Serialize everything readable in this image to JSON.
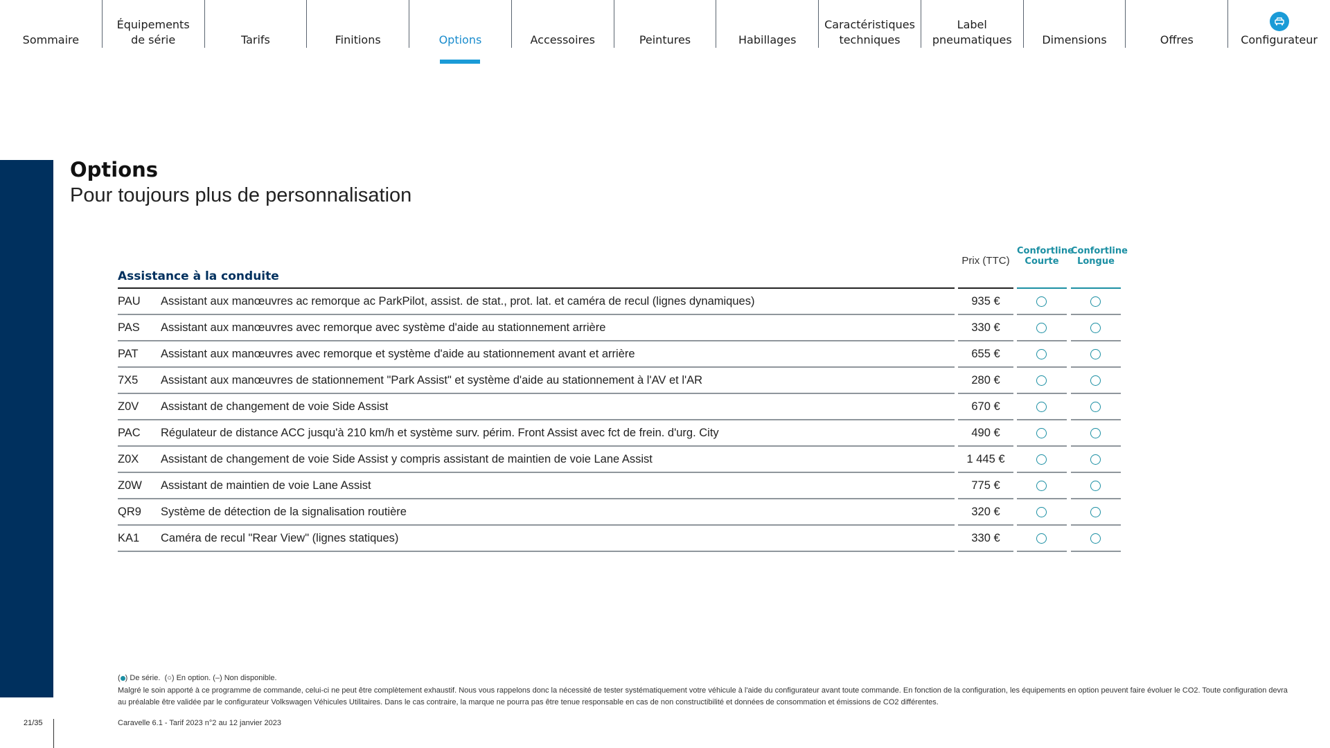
{
  "nav": {
    "items": [
      {
        "label": "Sommaire"
      },
      {
        "label": "Équipements\nde série"
      },
      {
        "label": "Tarifs"
      },
      {
        "label": "Finitions"
      },
      {
        "label": "Options",
        "active": true
      },
      {
        "label": "Accessoires"
      },
      {
        "label": "Peintures"
      },
      {
        "label": "Habillages"
      },
      {
        "label": "Caractéristiques\ntechniques"
      },
      {
        "label": "Label\npneumatiques"
      },
      {
        "label": "Dimensions"
      },
      {
        "label": "Offres"
      },
      {
        "label": "Configurateur",
        "icon": "car-configurator-icon"
      }
    ]
  },
  "page": {
    "title": "Options",
    "subtitle": "Pour toujours plus de personnalisation"
  },
  "table": {
    "section": "Assistance à la conduite",
    "price_header": "Prix (TTC)",
    "columns": [
      "Confortline\nCourte",
      "Confortline\nLongue"
    ],
    "rows": [
      {
        "code": "PAU",
        "desc": "Assistant aux manœuvres ac remorque ac ParkPilot, assist. de stat., prot. lat. et caméra de recul (lignes dynamiques)",
        "price": "935 €",
        "courte": "option",
        "longue": "option"
      },
      {
        "code": "PAS",
        "desc": "Assistant aux manœuvres avec remorque avec système d'aide au stationnement arrière",
        "price": "330 €",
        "courte": "option",
        "longue": "option"
      },
      {
        "code": "PAT",
        "desc": "Assistant aux manœuvres avec remorque et système d'aide au stationnement avant et arrière",
        "price": "655 €",
        "courte": "option",
        "longue": "option"
      },
      {
        "code": "7X5",
        "desc": "Assistant aux manœuvres de stationnement \"Park Assist\" et système d'aide au stationnement à l'AV et l'AR",
        "price": "280 €",
        "courte": "option",
        "longue": "option"
      },
      {
        "code": "Z0V",
        "desc": "Assistant de changement de voie Side Assist",
        "price": "670 €",
        "courte": "option",
        "longue": "option"
      },
      {
        "code": "PAC",
        "desc": "Régulateur de distance ACC jusqu'à 210 km/h et système surv. périm. Front Assist avec fct de frein. d'urg. City",
        "price": "490 €",
        "courte": "option",
        "longue": "option"
      },
      {
        "code": "Z0X",
        "desc": "Assistant de changement de voie Side Assist y compris assistant de maintien de voie Lane Assist",
        "price": "1 445 €",
        "courte": "option",
        "longue": "option"
      },
      {
        "code": "Z0W",
        "desc": "Assistant de maintien de voie Lane Assist",
        "price": "775 €",
        "courte": "option",
        "longue": "option"
      },
      {
        "code": "QR9",
        "desc": "Système de détection de la signalisation routière",
        "price": "320 €",
        "courte": "option",
        "longue": "option"
      },
      {
        "code": "KA1",
        "desc": "Caméra de recul \"Rear View\" (lignes statiques)",
        "price": "330 €",
        "courte": "option",
        "longue": "option"
      }
    ]
  },
  "legend": {
    "serie": "De série.",
    "option": "(○) En option.",
    "na": "(–) Non disponible."
  },
  "disclaimer": "Malgré le soin apporté à ce programme de commande, celui-ci ne peut être complètement exhaustif. Nous vous rappelons donc la nécessité de tester systématiquement votre véhicule à l'aide du configurateur avant toute commande.  En fonction de la configuration, les équipements en option peuvent faire évoluer le CO2. Toute configuration devra au préalable être validée par le configurateur Volkswagen Véhicules Utilitaires. Dans le cas contraire, la marque ne pourra pas être tenue responsable en cas de non constructibilité et données de consommation et émissions de CO2 différentes.",
  "footer": {
    "doc": "Caravelle 6.1 - Tarif 2023 n°2 au 12 janvier 2023",
    "page": "21/35"
  },
  "colors": {
    "brand_navy": "#00305e",
    "accent": "#1a9bd7",
    "teal": "#1b8fa3"
  }
}
